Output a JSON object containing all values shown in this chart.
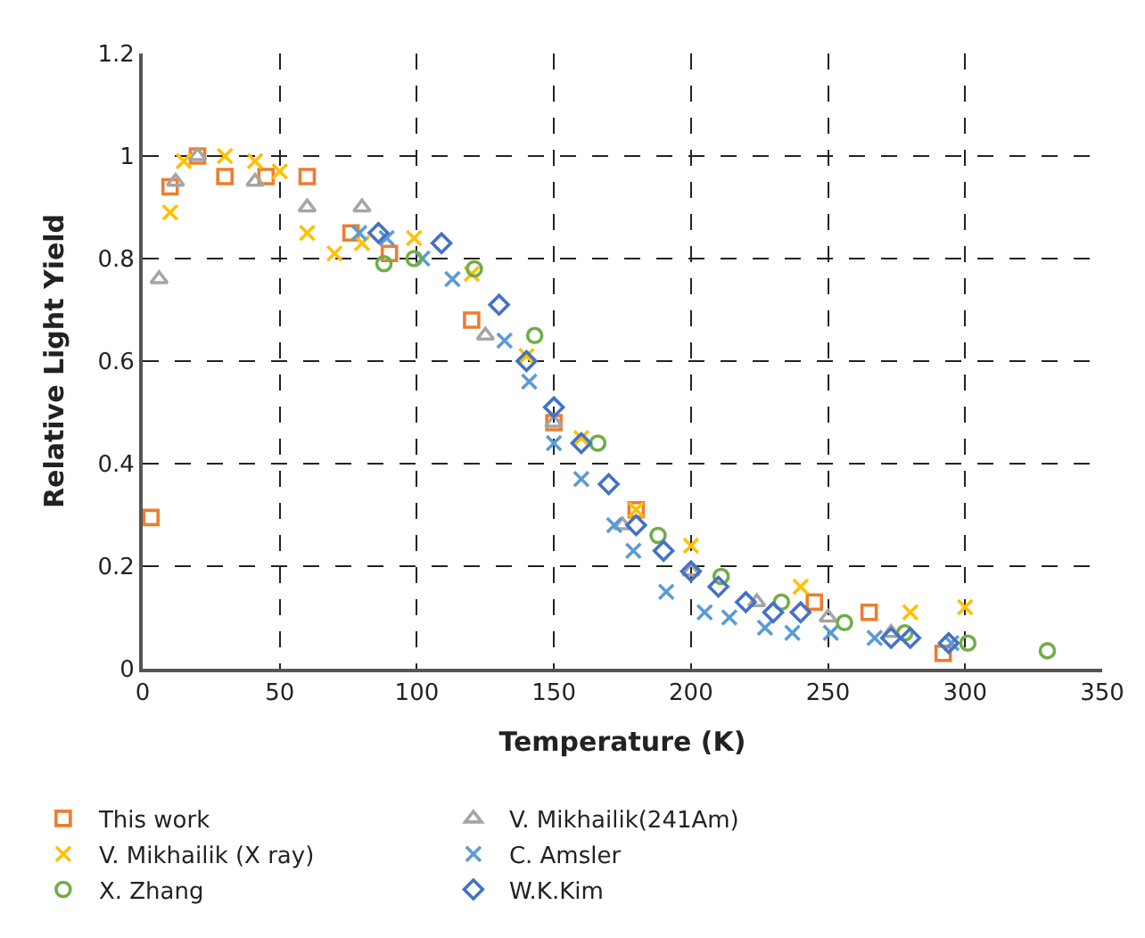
{
  "chart_data": {
    "type": "scatter",
    "xlabel": "Temperature (K)",
    "ylabel": "Relative Light Yield",
    "xlim": [
      0,
      350
    ],
    "xticks": [
      0,
      50,
      100,
      150,
      200,
      250,
      300,
      350
    ],
    "ylim": [
      0,
      1.2
    ],
    "yticks": [
      0,
      0.2,
      0.4,
      0.6,
      0.8,
      1,
      1.2
    ],
    "grid": true,
    "legend": "bottom",
    "series": [
      {
        "name": "This work",
        "color": "#ed7d31",
        "marker": "square",
        "x": [
          3,
          10,
          20,
          30,
          45,
          60,
          76,
          90,
          120,
          150,
          180,
          245,
          265,
          292
        ],
        "values": [
          0.295,
          0.94,
          1.0,
          0.96,
          0.96,
          0.96,
          0.85,
          0.81,
          0.68,
          0.48,
          0.31,
          0.13,
          0.11,
          0.03
        ]
      },
      {
        "name": "V. Mikhailik(241Am)",
        "color": "#a5a5a5",
        "marker": "triangle",
        "x": [
          6,
          12,
          20,
          41,
          60,
          80,
          125,
          150,
          175,
          200,
          224,
          250,
          273
        ],
        "values": [
          0.76,
          0.95,
          1.0,
          0.95,
          0.9,
          0.9,
          0.65,
          0.48,
          0.28,
          0.19,
          0.13,
          0.1,
          0.07
        ]
      },
      {
        "name": "V. Mikhailik (X ray)",
        "color": "#ffc000",
        "marker": "cross",
        "x": [
          10,
          15,
          30,
          41,
          50,
          60,
          70,
          80,
          99,
          120,
          140,
          160,
          180,
          200,
          240,
          280,
          300
        ],
        "values": [
          0.89,
          0.99,
          1.0,
          0.99,
          0.97,
          0.85,
          0.81,
          0.83,
          0.84,
          0.77,
          0.61,
          0.45,
          0.31,
          0.24,
          0.16,
          0.11,
          0.12
        ]
      },
      {
        "name": "C. Amsler",
        "color": "#5b9bd5",
        "marker": "cross",
        "x": [
          79,
          89,
          102,
          113,
          132,
          141,
          150,
          160,
          172,
          179,
          191,
          205,
          214,
          227,
          237,
          251,
          267,
          295
        ],
        "values": [
          0.85,
          0.84,
          0.8,
          0.76,
          0.64,
          0.56,
          0.44,
          0.37,
          0.28,
          0.23,
          0.15,
          0.11,
          0.1,
          0.08,
          0.07,
          0.07,
          0.06,
          0.05
        ]
      },
      {
        "name": "X. Zhang",
        "color": "#70ad47",
        "marker": "circle",
        "x": [
          88,
          99,
          121,
          143,
          166,
          188,
          211,
          233,
          256,
          278,
          301,
          330
        ],
        "values": [
          0.79,
          0.8,
          0.78,
          0.65,
          0.44,
          0.26,
          0.18,
          0.13,
          0.09,
          0.07,
          0.05,
          0.035
        ]
      },
      {
        "name": "W.K.Kim",
        "color": "#4472c4",
        "marker": "diamond",
        "x": [
          86,
          109,
          130,
          140,
          150,
          160,
          170,
          180,
          190,
          200,
          210,
          220,
          230,
          240,
          273,
          280,
          294
        ],
        "values": [
          0.85,
          0.83,
          0.71,
          0.6,
          0.51,
          0.44,
          0.36,
          0.28,
          0.23,
          0.19,
          0.16,
          0.13,
          0.11,
          0.11,
          0.06,
          0.06,
          0.05
        ]
      }
    ]
  }
}
